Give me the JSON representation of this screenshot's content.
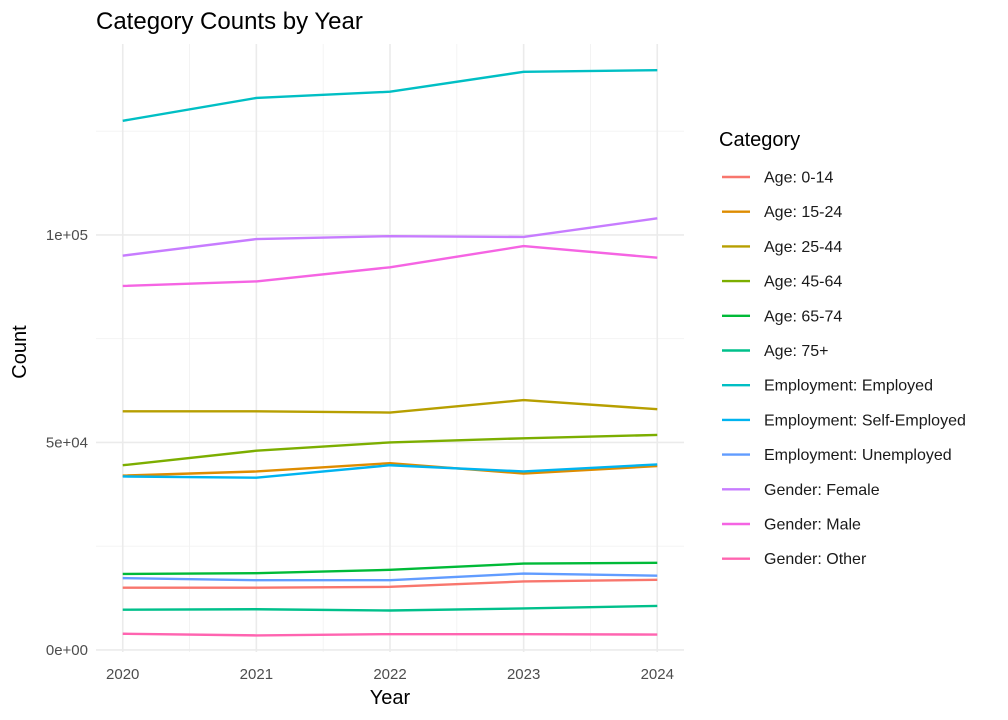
{
  "chart_data": {
    "type": "line",
    "title": "Category Counts by Year",
    "xlabel": "Year",
    "ylabel": "Count",
    "x": [
      2020,
      2021,
      2022,
      2023,
      2024
    ],
    "x_tick_labels": [
      "2020",
      "2021",
      "2022",
      "2023",
      "2024"
    ],
    "ylim": [
      -500,
      146000
    ],
    "y_ticks": [
      0,
      50000,
      100000
    ],
    "y_tick_labels": [
      "0e+00",
      "5e+04",
      "1e+05"
    ],
    "grid": true,
    "legend": {
      "title": "Category",
      "position": "right"
    },
    "series": [
      {
        "name": "Age: 0-14",
        "color": "#F8766D",
        "values": [
          15000,
          15000,
          15200,
          16500,
          16900
        ]
      },
      {
        "name": "Age: 15-24",
        "color": "#DE8C00",
        "values": [
          42000,
          43000,
          45000,
          42500,
          44300
        ]
      },
      {
        "name": "Age: 25-44",
        "color": "#B79F00",
        "values": [
          57500,
          57500,
          57200,
          60200,
          58000
        ]
      },
      {
        "name": "Age: 45-64",
        "color": "#7CAE00",
        "values": [
          44500,
          48000,
          50000,
          51000,
          51800
        ]
      },
      {
        "name": "Age: 65-74",
        "color": "#00BA38",
        "values": [
          18300,
          18500,
          19300,
          20800,
          21000
        ]
      },
      {
        "name": "Age: 75+",
        "color": "#00C08B",
        "values": [
          9700,
          9800,
          9500,
          10000,
          10600
        ]
      },
      {
        "name": "Employment: Employed",
        "color": "#00BFC4",
        "values": [
          127500,
          133000,
          134500,
          139300,
          139700
        ]
      },
      {
        "name": "Employment: Self-Employed",
        "color": "#00B4F0",
        "values": [
          41800,
          41500,
          44500,
          43000,
          44700
        ]
      },
      {
        "name": "Employment: Unemployed",
        "color": "#619CFF",
        "values": [
          17300,
          16800,
          16800,
          18400,
          17900
        ]
      },
      {
        "name": "Gender: Female",
        "color": "#C77CFF",
        "values": [
          95000,
          99000,
          99700,
          99500,
          104000
        ]
      },
      {
        "name": "Gender: Male",
        "color": "#F564E3",
        "values": [
          87700,
          88800,
          92200,
          97300,
          94500
        ]
      },
      {
        "name": "Gender: Other",
        "color": "#FF64B0",
        "values": [
          3900,
          3500,
          3800,
          3800,
          3700
        ]
      }
    ]
  }
}
